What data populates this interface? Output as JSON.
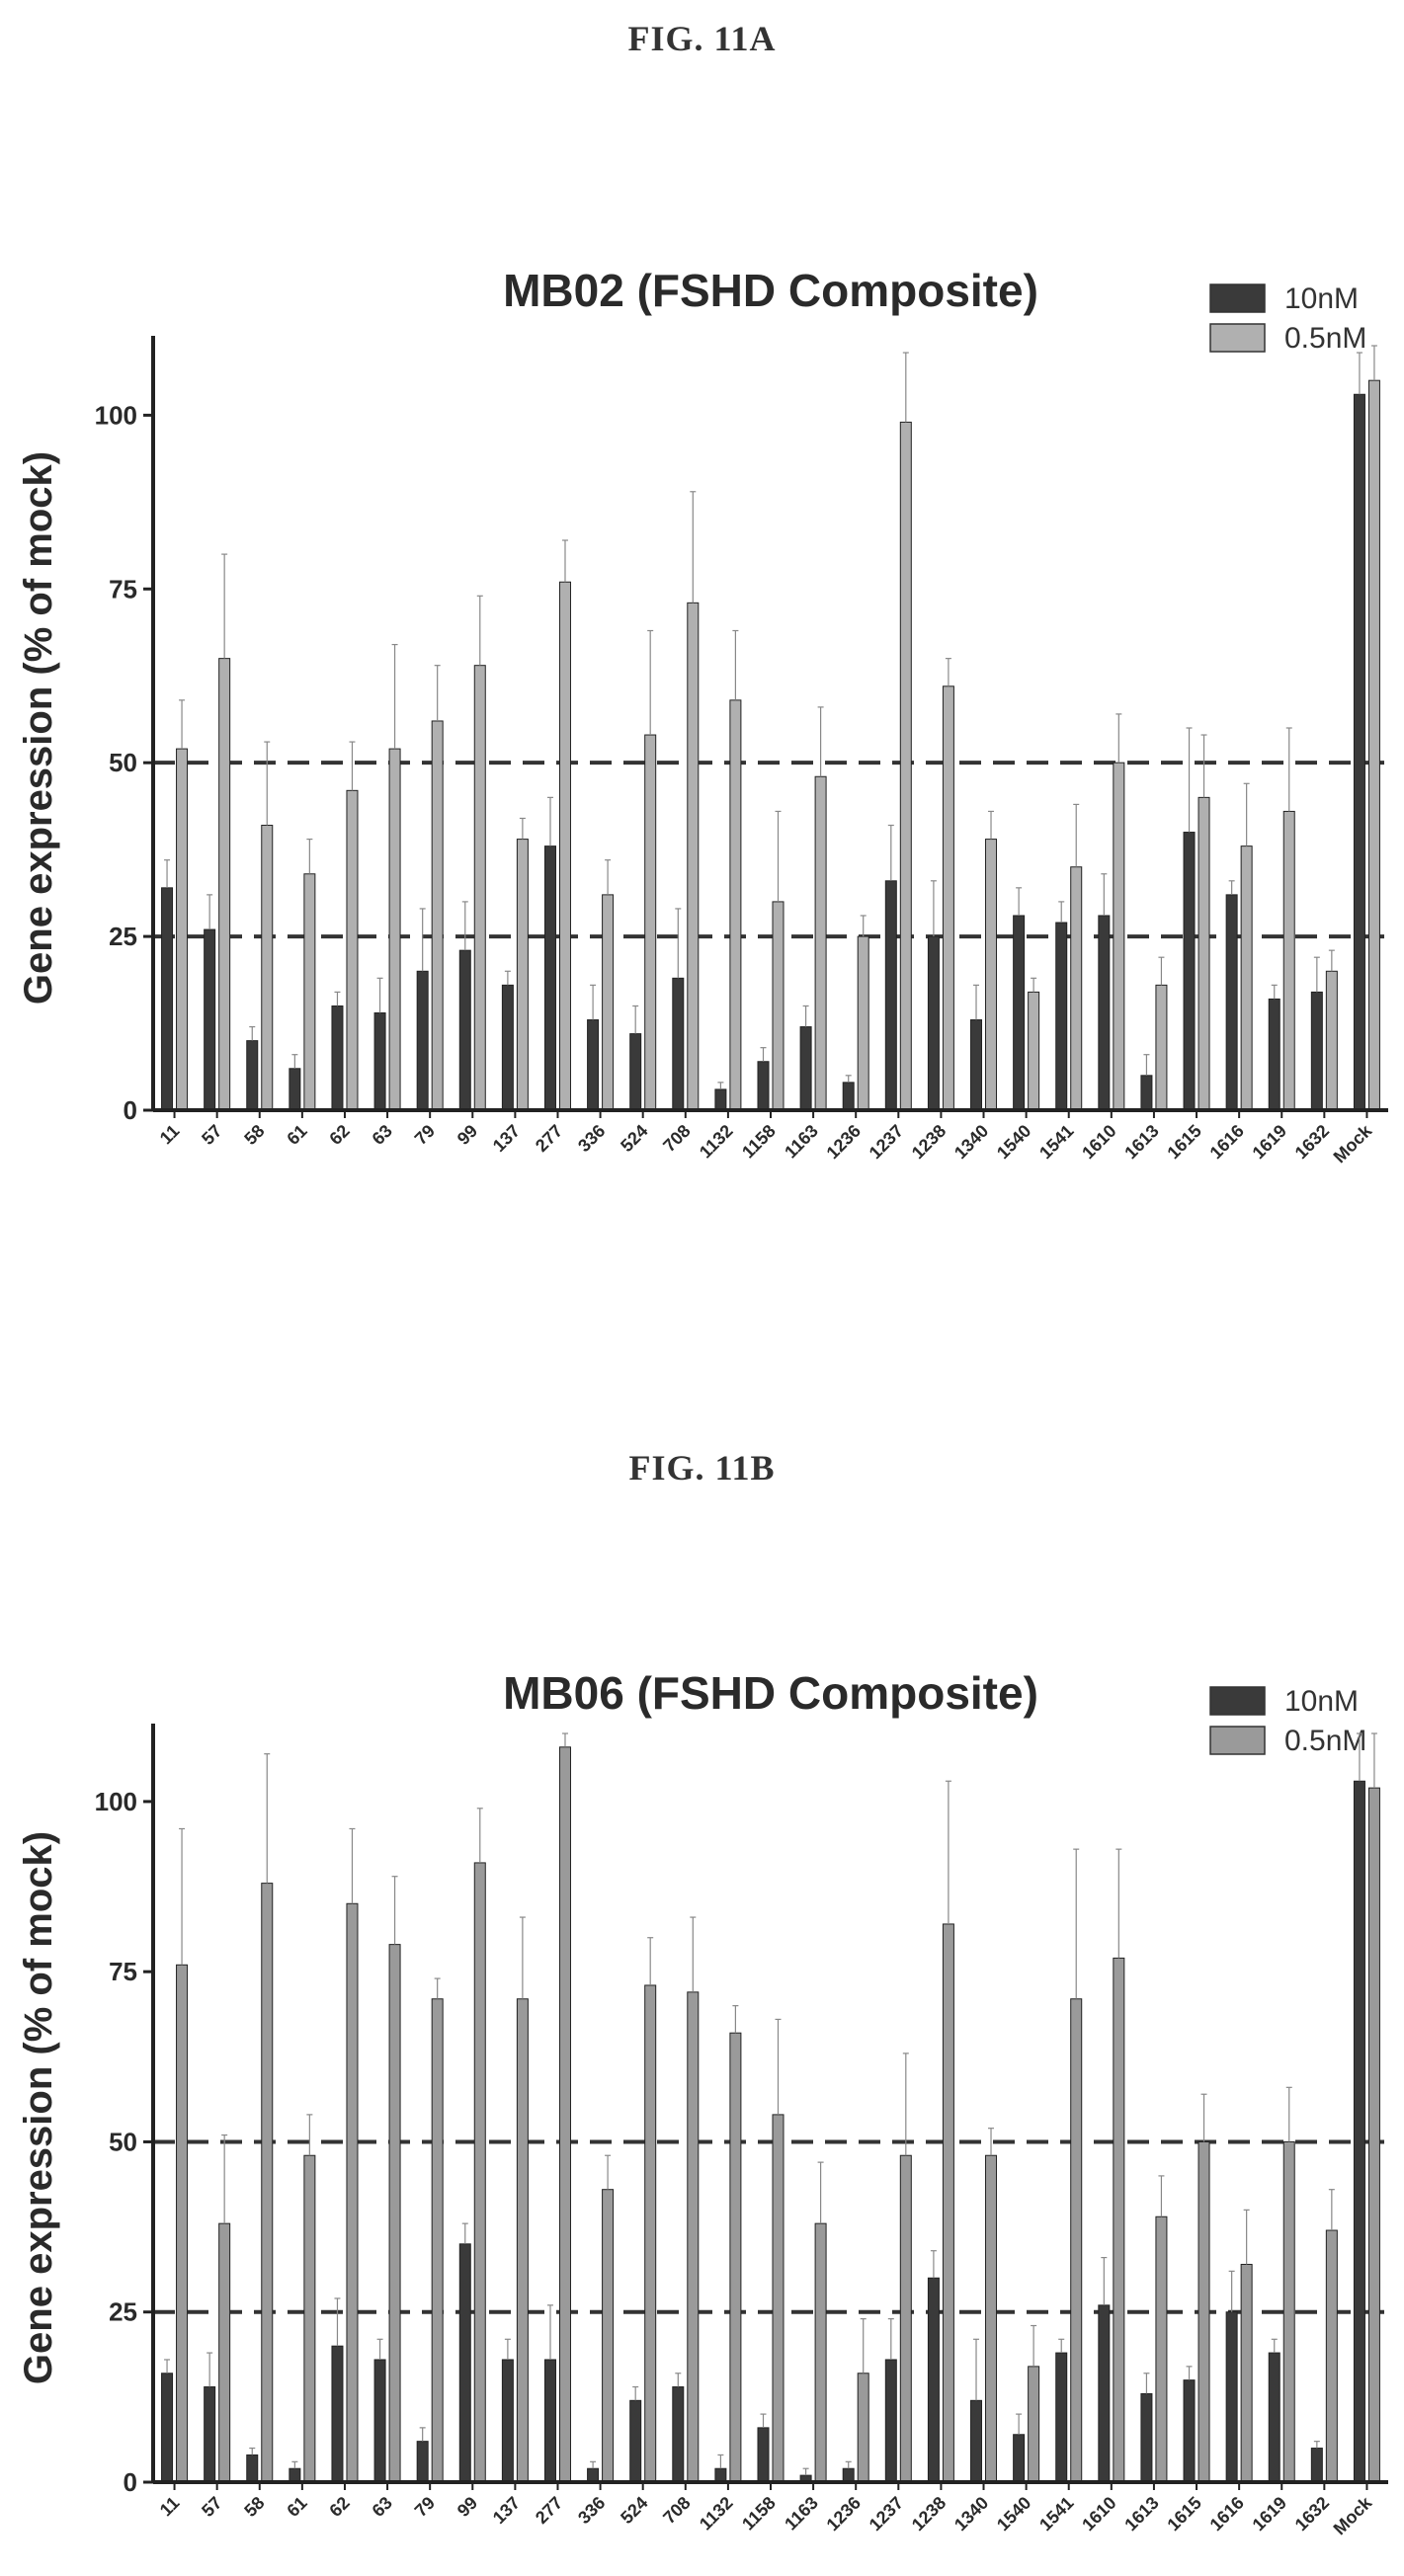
{
  "figures": [
    {
      "label": "FIG. 11A"
    },
    {
      "label": "FIG. 11B"
    }
  ],
  "chart_data": [
    {
      "type": "bar",
      "title": "MB02 (FSHD Composite)",
      "ylabel": "Gene expression (% of mock)",
      "xlabel": "",
      "ylim": [
        0,
        110
      ],
      "yticks": [
        0,
        25,
        50,
        75,
        100
      ],
      "reference_lines": [
        25,
        50
      ],
      "legend_position": "top-right",
      "categories": [
        "11",
        "57",
        "58",
        "61",
        "62",
        "63",
        "79",
        "99",
        "137",
        "277",
        "336",
        "524",
        "708",
        "1132",
        "1158",
        "1163",
        "1236",
        "1237",
        "1238",
        "1340",
        "1540",
        "1541",
        "1610",
        "1613",
        "1615",
        "1616",
        "1619",
        "1632",
        "Mock"
      ],
      "series": [
        {
          "name": "10nM",
          "color": "#3a3a3a",
          "values": [
            32,
            26,
            10,
            6,
            15,
            14,
            20,
            23,
            18,
            38,
            13,
            11,
            19,
            3,
            7,
            12,
            4,
            33,
            25,
            13,
            28,
            27,
            28,
            5,
            40,
            31,
            16,
            17,
            103
          ],
          "errors": [
            4,
            5,
            2,
            2,
            2,
            5,
            9,
            7,
            2,
            7,
            5,
            4,
            10,
            1,
            2,
            3,
            1,
            8,
            8,
            5,
            4,
            3,
            6,
            3,
            15,
            2,
            2,
            5,
            6
          ]
        },
        {
          "name": "0.5nM",
          "color": "#b0b0b0",
          "values": [
            52,
            65,
            41,
            34,
            46,
            52,
            56,
            64,
            39,
            76,
            31,
            54,
            73,
            59,
            30,
            48,
            25,
            99,
            61,
            39,
            17,
            35,
            50,
            18,
            45,
            38,
            43,
            20,
            105
          ],
          "errors": [
            7,
            15,
            12,
            5,
            7,
            15,
            8,
            10,
            3,
            6,
            5,
            15,
            16,
            10,
            13,
            10,
            3,
            10,
            4,
            4,
            2,
            9,
            7,
            4,
            9,
            9,
            12,
            3,
            6
          ]
        }
      ]
    },
    {
      "type": "bar",
      "title": "MB06 (FSHD Composite)",
      "ylabel": "Gene expression (% of mock)",
      "xlabel": "",
      "ylim": [
        0,
        110
      ],
      "yticks": [
        0,
        25,
        50,
        75,
        100
      ],
      "reference_lines": [
        25,
        50
      ],
      "legend_position": "top-right",
      "categories": [
        "11",
        "57",
        "58",
        "61",
        "62",
        "63",
        "79",
        "99",
        "137",
        "277",
        "336",
        "524",
        "708",
        "1132",
        "1158",
        "1163",
        "1236",
        "1237",
        "1238",
        "1340",
        "1540",
        "1541",
        "1610",
        "1613",
        "1615",
        "1616",
        "1619",
        "1632",
        "Mock"
      ],
      "series": [
        {
          "name": "10nM",
          "color": "#3a3a3a",
          "values": [
            16,
            14,
            4,
            2,
            20,
            18,
            6,
            35,
            18,
            18,
            2,
            12,
            14,
            2,
            8,
            1,
            2,
            18,
            30,
            12,
            7,
            19,
            26,
            13,
            15,
            25,
            19,
            5,
            103
          ],
          "errors": [
            2,
            5,
            1,
            1,
            7,
            3,
            2,
            3,
            3,
            8,
            1,
            2,
            2,
            2,
            2,
            1,
            1,
            6,
            4,
            9,
            3,
            2,
            7,
            3,
            2,
            6,
            2,
            1,
            7
          ]
        },
        {
          "name": "0.5nM",
          "color": "#9a9a9a",
          "values": [
            76,
            38,
            88,
            48,
            85,
            79,
            71,
            91,
            71,
            108,
            43,
            73,
            72,
            66,
            54,
            38,
            16,
            48,
            82,
            48,
            17,
            71,
            77,
            39,
            50,
            32,
            50,
            37,
            102
          ],
          "errors": [
            20,
            13,
            19,
            6,
            11,
            10,
            3,
            8,
            12,
            2,
            5,
            7,
            11,
            4,
            14,
            9,
            8,
            15,
            21,
            4,
            6,
            22,
            16,
            6,
            7,
            8,
            8,
            6,
            8
          ]
        }
      ]
    }
  ]
}
